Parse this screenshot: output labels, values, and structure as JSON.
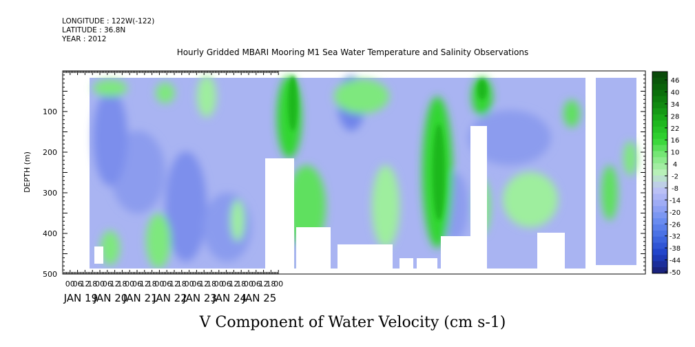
{
  "header": {
    "longitude": "LONGITUDE : 122W(-122)",
    "latitude": "LATITUDE : 36.8N",
    "year": "YEAR : 2012"
  },
  "title": "Hourly Gridded MBARI Mooring M1 Sea Water Temperature and Salinity Observations",
  "variable_title": "V Component of Water Velocity (cm s-1)",
  "colors": {
    "background": "#b3b3f0",
    "palette": [
      "#1a237e",
      "#1e40c8",
      "#4169e1",
      "#6a8cf0",
      "#9aa8f5",
      "#c0c4f5",
      "#b8f0b8",
      "#7ee87e",
      "#33d633",
      "#1fb81f",
      "#128f12",
      "#0a6a0a",
      "#0a4a0a"
    ]
  },
  "chart_data": {
    "type": "heatmap",
    "title": "Hourly Gridded MBARI Mooring M1 Sea Water Temperature and Salinity Observations",
    "xlabel": "",
    "ylabel": "DEPTH (m)",
    "colorbar_label": "V Component of Water Velocity (cm s-1)",
    "x_start": "2012-01-18T00:00",
    "x_end": "2012-01-25T16:00",
    "x_day_labels": [
      "JAN 19",
      "JAN 20",
      "JAN 21",
      "JAN 22",
      "JAN 23",
      "JAN 24",
      "JAN 25"
    ],
    "x_hour_ticks": [
      "06",
      "12",
      "18",
      "00"
    ],
    "y_ticks": [
      "100",
      "200",
      "300",
      "400",
      "500"
    ],
    "ylim": [
      500,
      0
    ],
    "colorbar_levels": [
      "46",
      "40",
      "34",
      "28",
      "22",
      "16",
      "10",
      "4",
      "-2",
      "-8",
      "-14",
      "-20",
      "-26",
      "-32",
      "-38",
      "-44",
      "-50"
    ],
    "approx_features": [
      {
        "x": "2012-01-21T16:00",
        "depth_from": 20,
        "depth_to": 380,
        "value": 16
      },
      {
        "x": "2012-01-23T06:00",
        "depth_from": 100,
        "depth_to": 450,
        "value": 22
      },
      {
        "x": "2012-01-23T20:00",
        "depth_from": 20,
        "depth_to": 130,
        "value": 28
      },
      {
        "x": "2012-01-20T00:00",
        "depth_from": 150,
        "depth_to": 480,
        "value": -14
      }
    ]
  }
}
